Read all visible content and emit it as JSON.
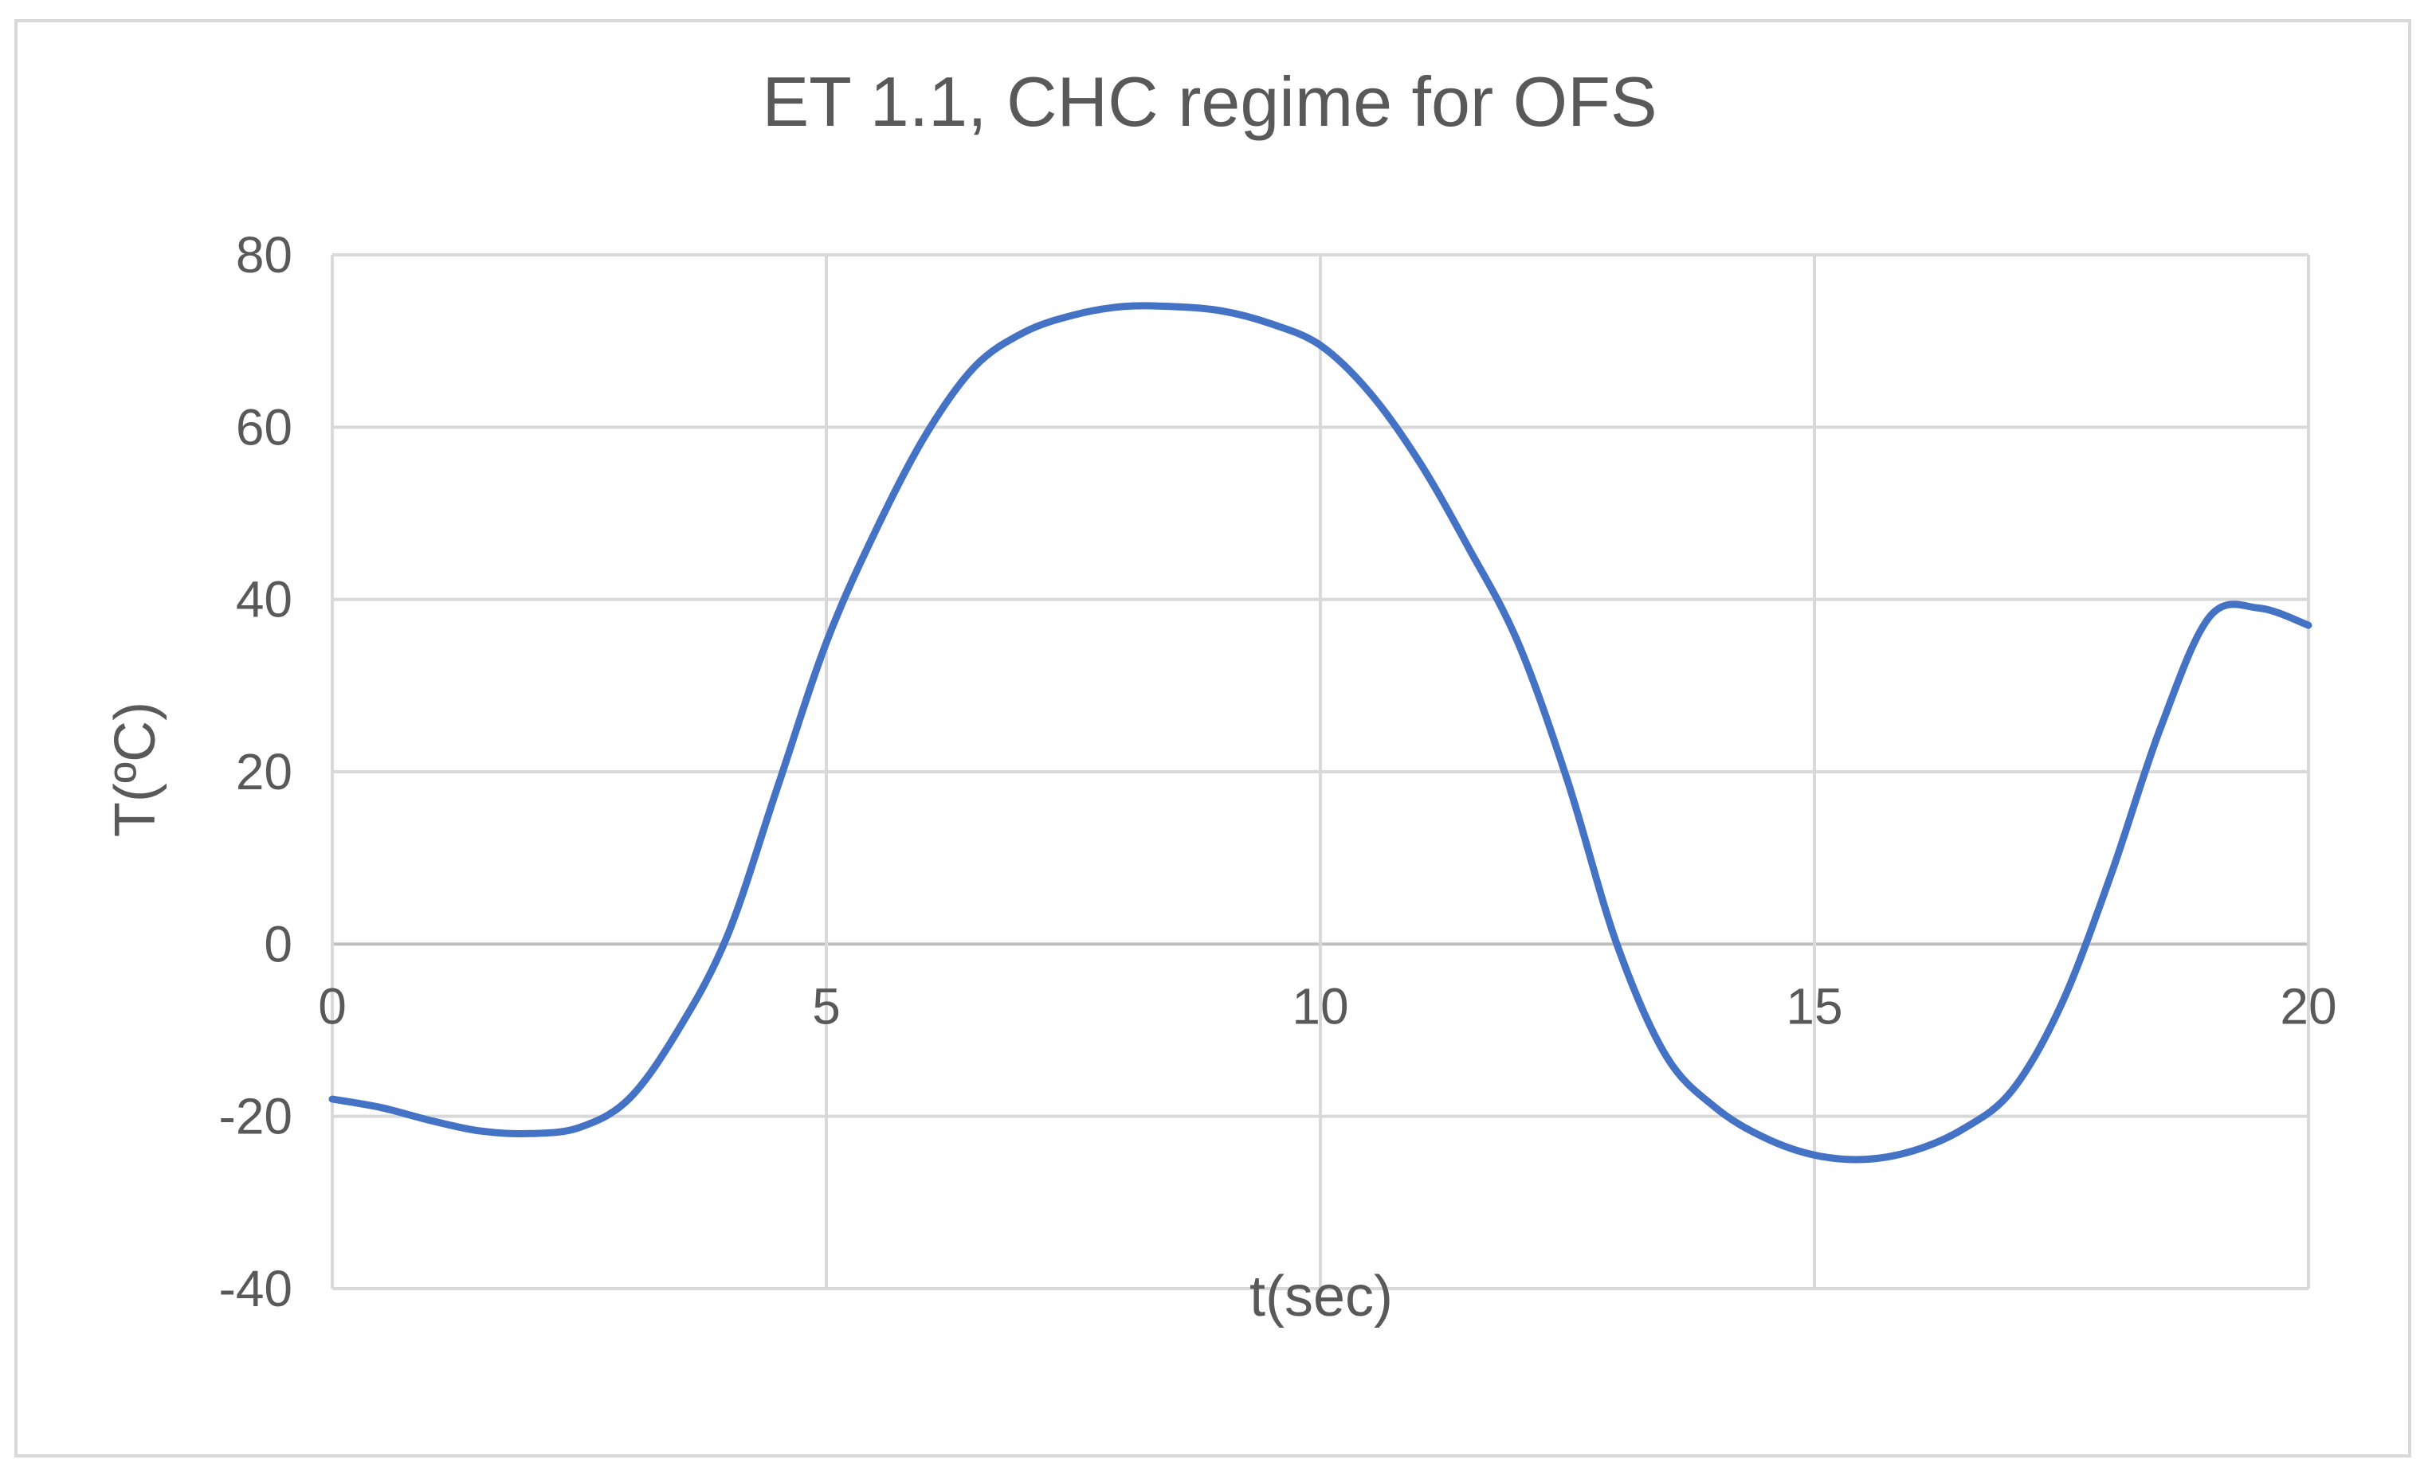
{
  "chart_data": {
    "type": "line",
    "title": "ET 1.1, CHC regime for OFS",
    "xlabel": "t(sec)",
    "ylabel": "T(ºC)",
    "xlim": [
      0,
      20
    ],
    "ylim": [
      -40,
      80
    ],
    "x_ticks": [
      0,
      5,
      10,
      15,
      20
    ],
    "y_ticks": [
      -40,
      -20,
      0,
      20,
      40,
      60,
      80
    ],
    "grid": true,
    "legend": "none",
    "series_color": "#4472c4",
    "series": [
      {
        "x": [
          0,
          0.5,
          1,
          1.5,
          2,
          2.5,
          3,
          3.5,
          4,
          4.5,
          5,
          5.5,
          6,
          6.5,
          7,
          7.5,
          8,
          8.5,
          9,
          9.5,
          10,
          10.5,
          11,
          11.5,
          12,
          12.5,
          13,
          13.5,
          14,
          14.5,
          15,
          15.5,
          16,
          16.5,
          17,
          17.5,
          18,
          18.5,
          19,
          19.5,
          20
        ],
        "y": [
          -18,
          -19,
          -20.5,
          -21.7,
          -22,
          -21.3,
          -18,
          -10,
          1,
          18,
          35,
          48,
          59,
          67,
          71,
          73,
          74,
          74,
          73.5,
          72,
          69.5,
          64,
          56,
          46,
          35,
          19,
          0,
          -13,
          -19,
          -22.5,
          -24.5,
          -25,
          -24,
          -21.5,
          -17,
          -7,
          8,
          25,
          38,
          39,
          37
        ]
      }
    ]
  }
}
